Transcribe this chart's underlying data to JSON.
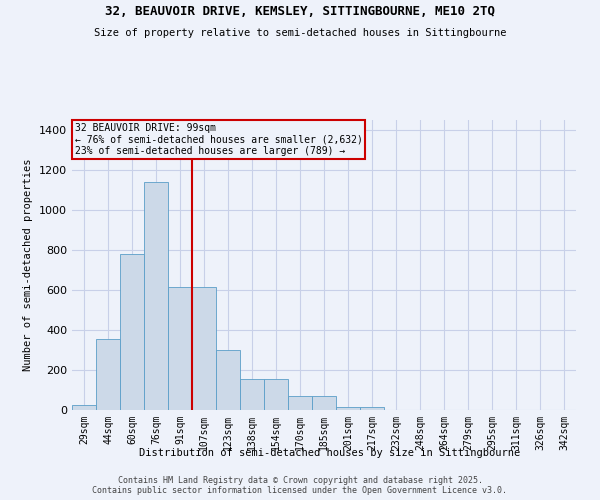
{
  "title_line1": "32, BEAUVOIR DRIVE, KEMSLEY, SITTINGBOURNE, ME10 2TQ",
  "title_line2": "Size of property relative to semi-detached houses in Sittingbourne",
  "xlabel": "Distribution of semi-detached houses by size in Sittingbourne",
  "ylabel": "Number of semi-detached properties",
  "categories": [
    "29sqm",
    "44sqm",
    "60sqm",
    "76sqm",
    "91sqm",
    "107sqm",
    "123sqm",
    "138sqm",
    "154sqm",
    "170sqm",
    "185sqm",
    "201sqm",
    "217sqm",
    "232sqm",
    "248sqm",
    "264sqm",
    "279sqm",
    "295sqm",
    "311sqm",
    "326sqm",
    "342sqm"
  ],
  "values": [
    25,
    355,
    780,
    1140,
    615,
    615,
    300,
    155,
    155,
    70,
    70,
    15,
    15,
    0,
    0,
    0,
    0,
    0,
    0,
    0,
    0
  ],
  "bar_color": "#ccd9e8",
  "bar_edge_color": "#5a9ec8",
  "annotation_text_line1": "32 BEAUVOIR DRIVE: 99sqm",
  "annotation_text_line2": "← 76% of semi-detached houses are smaller (2,632)",
  "annotation_text_line3": "23% of semi-detached houses are larger (789) →",
  "vline_color": "#cc0000",
  "box_edge_color": "#cc0000",
  "vline_position": 4.5,
  "ylim": [
    0,
    1450
  ],
  "yticks": [
    0,
    200,
    400,
    600,
    800,
    1000,
    1200,
    1400
  ],
  "bg_color": "#eef2fa",
  "grid_color": "#c8d0e8",
  "footer_line1": "Contains HM Land Registry data © Crown copyright and database right 2025.",
  "footer_line2": "Contains public sector information licensed under the Open Government Licence v3.0."
}
